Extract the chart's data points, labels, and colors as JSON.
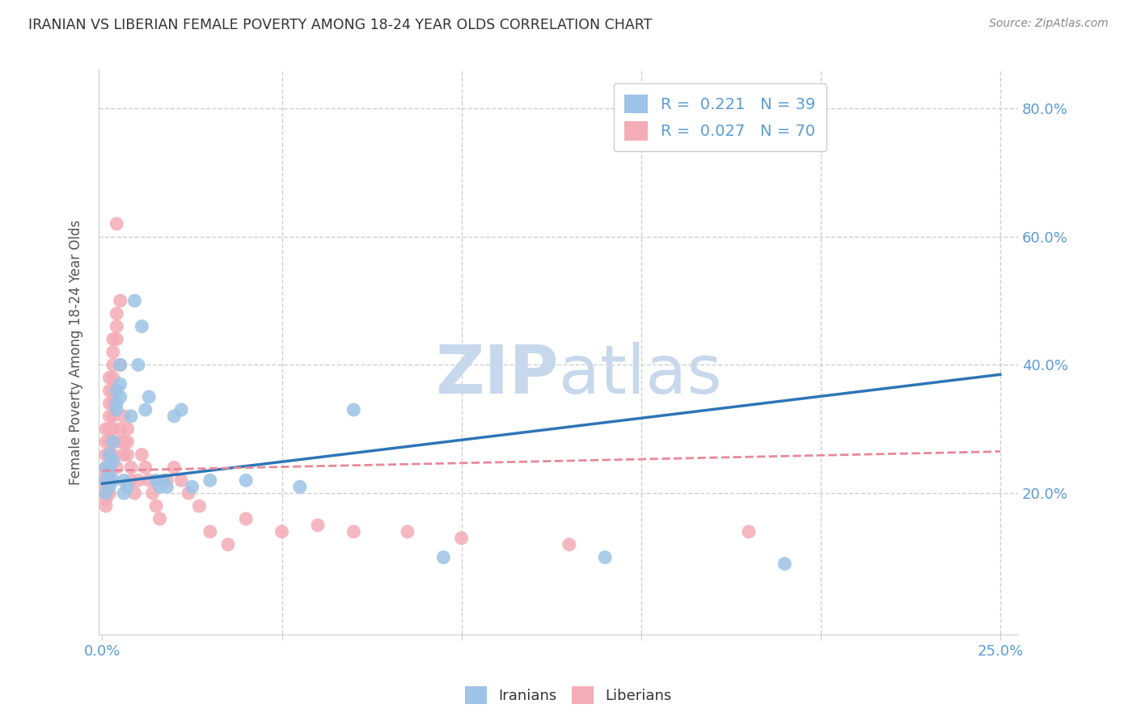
{
  "title": "IRANIAN VS LIBERIAN FEMALE POVERTY AMONG 18-24 YEAR OLDS CORRELATION CHART",
  "source": "Source: ZipAtlas.com",
  "ylabel": "Female Poverty Among 18-24 Year Olds",
  "xlim": [
    -0.001,
    0.255
  ],
  "ylim": [
    -0.02,
    0.86
  ],
  "xtick_positions": [
    0.0,
    0.05,
    0.1,
    0.15,
    0.2,
    0.25
  ],
  "xticklabels": [
    "0.0%",
    "",
    "",
    "",
    "",
    "25.0%"
  ],
  "ytick_positions": [
    0.2,
    0.4,
    0.6,
    0.8
  ],
  "ytick_labels_right": [
    "20.0%",
    "40.0%",
    "60.0%",
    "80.0%"
  ],
  "background_color": "#ffffff",
  "grid_color": "#d0d0d0",
  "title_color": "#333333",
  "axis_label_color": "#555555",
  "tick_color": "#5b9bd5",
  "legend_R_color": "#5b9bd5",
  "iranian_color": "#9dc3e6",
  "liberian_color": "#f4acb7",
  "iranian_line_color": "#2e75b6",
  "liberian_line_color": "#e8889a",
  "iranian_R": 0.221,
  "iranian_N": 39,
  "liberian_R": 0.027,
  "liberian_N": 70,
  "iranian_scatter_x": [
    0.001,
    0.001,
    0.001,
    0.002,
    0.002,
    0.002,
    0.002,
    0.003,
    0.003,
    0.003,
    0.004,
    0.004,
    0.004,
    0.005,
    0.005,
    0.005,
    0.006,
    0.006,
    0.007,
    0.008,
    0.009,
    0.01,
    0.011,
    0.012,
    0.013,
    0.015,
    0.016,
    0.017,
    0.018,
    0.02,
    0.022,
    0.025,
    0.03,
    0.04,
    0.055,
    0.07,
    0.095,
    0.14,
    0.19
  ],
  "iranian_scatter_y": [
    0.24,
    0.22,
    0.2,
    0.26,
    0.24,
    0.23,
    0.21,
    0.28,
    0.25,
    0.22,
    0.36,
    0.34,
    0.33,
    0.4,
    0.37,
    0.35,
    0.2,
    0.22,
    0.21,
    0.32,
    0.5,
    0.4,
    0.46,
    0.33,
    0.35,
    0.22,
    0.21,
    0.22,
    0.21,
    0.32,
    0.33,
    0.21,
    0.22,
    0.22,
    0.21,
    0.33,
    0.1,
    0.1,
    0.09
  ],
  "liberian_scatter_x": [
    0.001,
    0.001,
    0.001,
    0.001,
    0.001,
    0.001,
    0.001,
    0.001,
    0.001,
    0.001,
    0.002,
    0.002,
    0.002,
    0.002,
    0.002,
    0.002,
    0.002,
    0.002,
    0.002,
    0.002,
    0.003,
    0.003,
    0.003,
    0.003,
    0.003,
    0.003,
    0.003,
    0.003,
    0.003,
    0.003,
    0.004,
    0.004,
    0.004,
    0.004,
    0.004,
    0.005,
    0.005,
    0.005,
    0.005,
    0.006,
    0.006,
    0.006,
    0.007,
    0.007,
    0.007,
    0.008,
    0.008,
    0.009,
    0.01,
    0.011,
    0.012,
    0.013,
    0.014,
    0.015,
    0.016,
    0.018,
    0.02,
    0.022,
    0.024,
    0.027,
    0.03,
    0.035,
    0.04,
    0.05,
    0.06,
    0.07,
    0.085,
    0.1,
    0.13,
    0.18
  ],
  "liberian_scatter_y": [
    0.3,
    0.28,
    0.26,
    0.24,
    0.23,
    0.22,
    0.21,
    0.2,
    0.19,
    0.18,
    0.38,
    0.36,
    0.34,
    0.32,
    0.3,
    0.28,
    0.26,
    0.24,
    0.22,
    0.2,
    0.44,
    0.42,
    0.4,
    0.38,
    0.36,
    0.34,
    0.32,
    0.3,
    0.28,
    0.26,
    0.48,
    0.46,
    0.44,
    0.62,
    0.24,
    0.5,
    0.4,
    0.3,
    0.28,
    0.32,
    0.28,
    0.26,
    0.3,
    0.28,
    0.26,
    0.24,
    0.22,
    0.2,
    0.22,
    0.26,
    0.24,
    0.22,
    0.2,
    0.18,
    0.16,
    0.22,
    0.24,
    0.22,
    0.2,
    0.18,
    0.14,
    0.12,
    0.16,
    0.14,
    0.15,
    0.14,
    0.14,
    0.13,
    0.12,
    0.14
  ],
  "iranian_trendline_x": [
    0.0,
    0.25
  ],
  "iranian_trendline_y": [
    0.215,
    0.385
  ],
  "liberian_trendline_x": [
    0.0,
    0.25
  ],
  "liberian_trendline_y": [
    0.235,
    0.265
  ],
  "watermark_zip": "ZIP",
  "watermark_atlas": "atlas",
  "watermark_color": "#c8d8ec",
  "watermark_zip_size": 60,
  "watermark_atlas_size": 60
}
